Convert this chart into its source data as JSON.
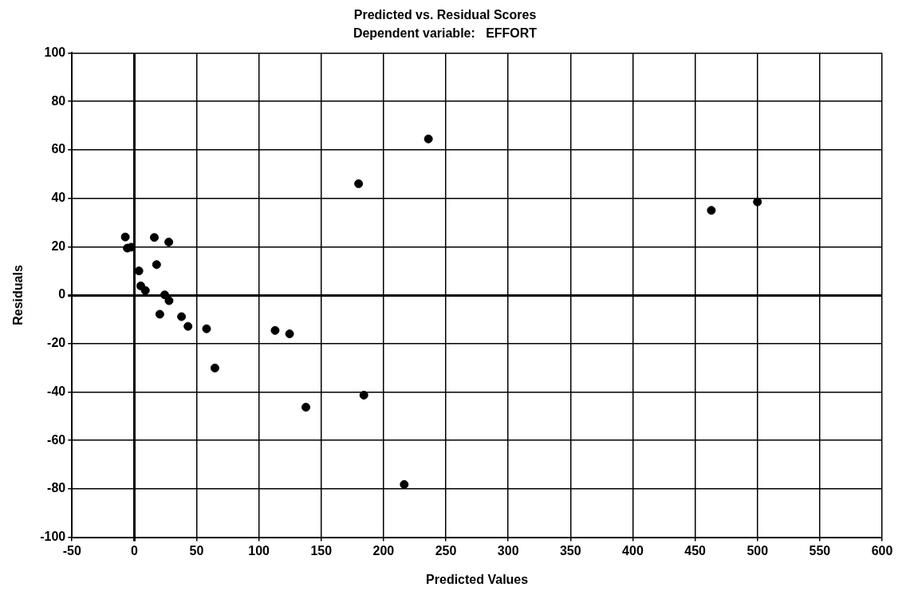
{
  "chart_data": {
    "type": "scatter",
    "title": "Predicted vs. Residual Scores",
    "subtitle": "Dependent variable:   EFFORT",
    "xlabel": "Predicted Values",
    "ylabel": "Residuals",
    "x": [
      -7.2,
      -5.6,
      -2.4,
      16.1,
      27.7,
      17.9,
      3.7,
      5.2,
      8.9,
      24.4,
      27.9,
      20.5,
      37.9,
      43.1,
      58,
      113,
      124.6,
      64.7,
      137.7,
      184.2,
      216.6,
      180,
      236,
      463,
      500
    ],
    "values": [
      24,
      19.4,
      19.8,
      23.8,
      21.9,
      12.6,
      10,
      3.8,
      1.9,
      0.1,
      -2.3,
      -7.9,
      -8.9,
      -12.9,
      -13.9,
      -14.6,
      -16,
      -30.1,
      -46.3,
      -41.3,
      -78.2,
      46,
      64.5,
      35,
      38.5
    ],
    "color": "#000000",
    "marker": "circle",
    "xlim": [
      -50,
      600
    ],
    "xticks": [
      -50,
      0,
      50,
      100,
      150,
      200,
      250,
      300,
      350,
      400,
      450,
      500,
      550,
      600
    ],
    "ylim": [
      -100,
      100
    ],
    "yticks": [
      -100,
      -80,
      -60,
      -40,
      -20,
      0,
      20,
      40,
      60,
      80,
      100
    ],
    "grid": true,
    "legend": false
  }
}
